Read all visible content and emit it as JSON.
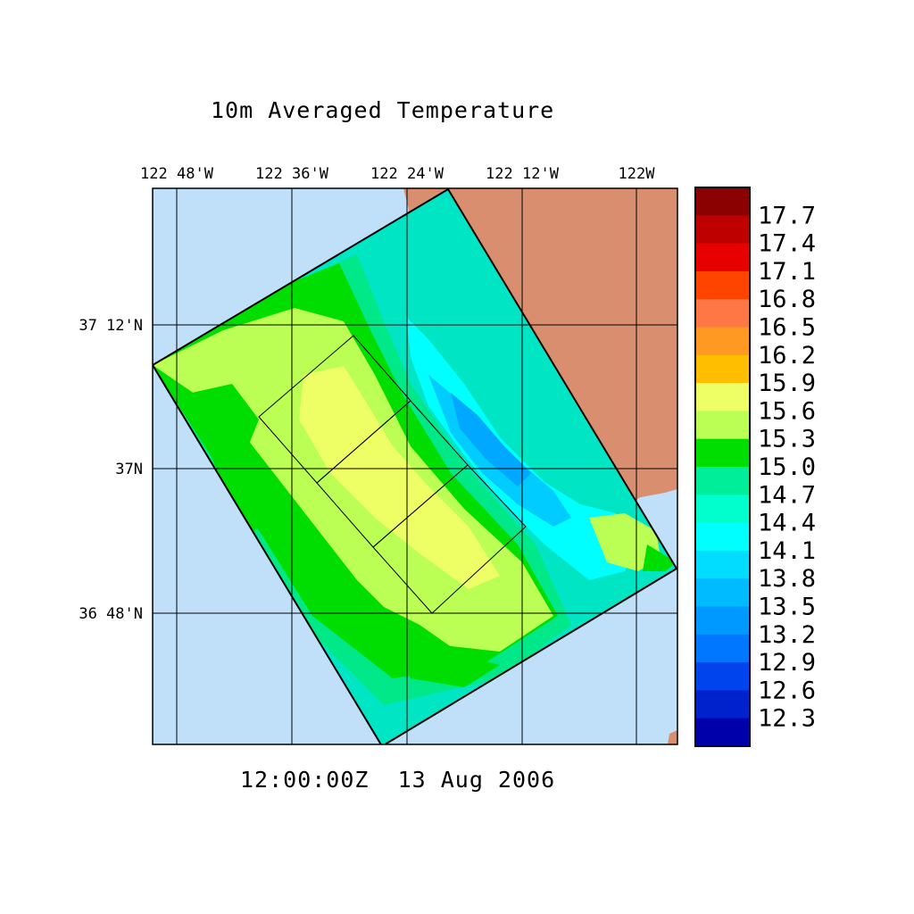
{
  "title": "10m Averaged Temperature",
  "timestamp": "12:00:00Z  13 Aug 2006",
  "longitude_labels": [
    "122 48'W",
    "122 36'W",
    "122 24'W",
    "122 12'W",
    "122W"
  ],
  "latitude_labels": [
    "37 12'N",
    "37N",
    "36 48'N"
  ],
  "colorbar": {
    "labels": [
      "17.7",
      "17.4",
      "17.1",
      "16.8",
      "16.5",
      "16.2",
      "15.9",
      "15.6",
      "15.3",
      "15.0",
      "14.7",
      "14.4",
      "14.1",
      "13.8",
      "13.5",
      "13.2",
      "12.9",
      "12.6",
      "12.3"
    ],
    "colors": [
      "#8b0000",
      "#bf0000",
      "#e60000",
      "#ff4400",
      "#ff7744",
      "#ff9922",
      "#ffbf00",
      "#eeff66",
      "#bbff55",
      "#00dd00",
      "#00ee99",
      "#00ffcc",
      "#00ffff",
      "#00ddff",
      "#00bbff",
      "#0099ff",
      "#0077ff",
      "#0044ee",
      "#0022cc",
      "#0000aa"
    ]
  },
  "colors": {
    "ocean_outside": "#c0e0fa",
    "land": "#d98f6f",
    "frame": "#000000"
  }
}
